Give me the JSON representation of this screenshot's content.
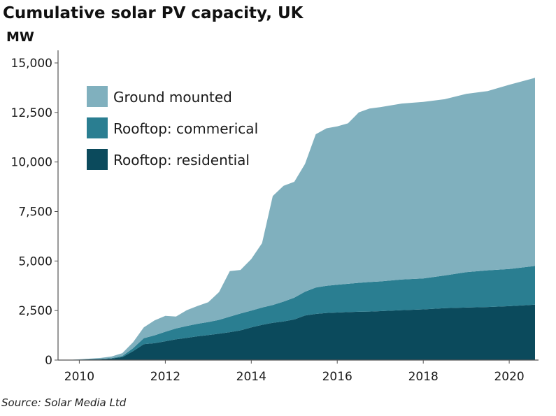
{
  "chart_data": {
    "type": "area",
    "stacked": true,
    "title": "Cumulative solar PV capacity, UK",
    "ylabel": "MW",
    "xlabel": "",
    "source": "Source: Solar Media Ltd",
    "xlim": [
      2009.7,
      2020.6
    ],
    "ylim": [
      0,
      15000
    ],
    "yticks": [
      0,
      2500,
      5000,
      7500,
      10000,
      12500,
      15000
    ],
    "ytick_labels": [
      "0",
      "2,500",
      "5,000",
      "7,500",
      "10,000",
      "12,500",
      "15,000"
    ],
    "xticks": [
      2010,
      2012,
      2014,
      2016,
      2018,
      2020
    ],
    "xtick_labels": [
      "2010",
      "2012",
      "2014",
      "2016",
      "2018",
      "2020"
    ],
    "legend_position": "top-left",
    "grid": false,
    "x": [
      2009.7,
      2010.0,
      2010.5,
      2010.75,
      2011.0,
      2011.25,
      2011.5,
      2011.75,
      2012.0,
      2012.25,
      2012.5,
      2012.75,
      2013.0,
      2013.25,
      2013.5,
      2013.75,
      2014.0,
      2014.25,
      2014.5,
      2014.75,
      2015.0,
      2015.25,
      2015.5,
      2015.75,
      2016.0,
      2016.25,
      2016.5,
      2016.75,
      2017.0,
      2017.5,
      2018.0,
      2018.5,
      2019.0,
      2019.5,
      2020.0,
      2020.6
    ],
    "series": [
      {
        "name": "Rooftop: residential",
        "color": "#0b4a5c",
        "values": [
          0,
          20,
          50,
          80,
          150,
          450,
          800,
          850,
          950,
          1050,
          1120,
          1200,
          1260,
          1330,
          1410,
          1500,
          1650,
          1780,
          1880,
          1950,
          2050,
          2250,
          2330,
          2380,
          2400,
          2420,
          2440,
          2450,
          2470,
          2520,
          2560,
          2620,
          2650,
          2680,
          2720,
          2800
        ]
      },
      {
        "name": "Rooftop: commerical",
        "color": "#2a7e91",
        "values": [
          0,
          5,
          10,
          20,
          50,
          150,
          300,
          400,
          480,
          550,
          600,
          630,
          660,
          700,
          780,
          850,
          850,
          870,
          900,
          1000,
          1100,
          1200,
          1330,
          1370,
          1400,
          1430,
          1460,
          1490,
          1500,
          1550,
          1560,
          1650,
          1790,
          1850,
          1880,
          1950
        ]
      },
      {
        "name": "Ground mounted",
        "color": "#80b0be",
        "values": [
          0,
          15,
          50,
          80,
          150,
          300,
          550,
          750,
          800,
          600,
          800,
          900,
          1000,
          1400,
          2300,
          2200,
          2600,
          3250,
          5500,
          5850,
          5850,
          6450,
          7740,
          7950,
          8000,
          8100,
          8600,
          8760,
          8800,
          8880,
          8910,
          8900,
          9000,
          9050,
          9300,
          9500
        ]
      }
    ]
  }
}
